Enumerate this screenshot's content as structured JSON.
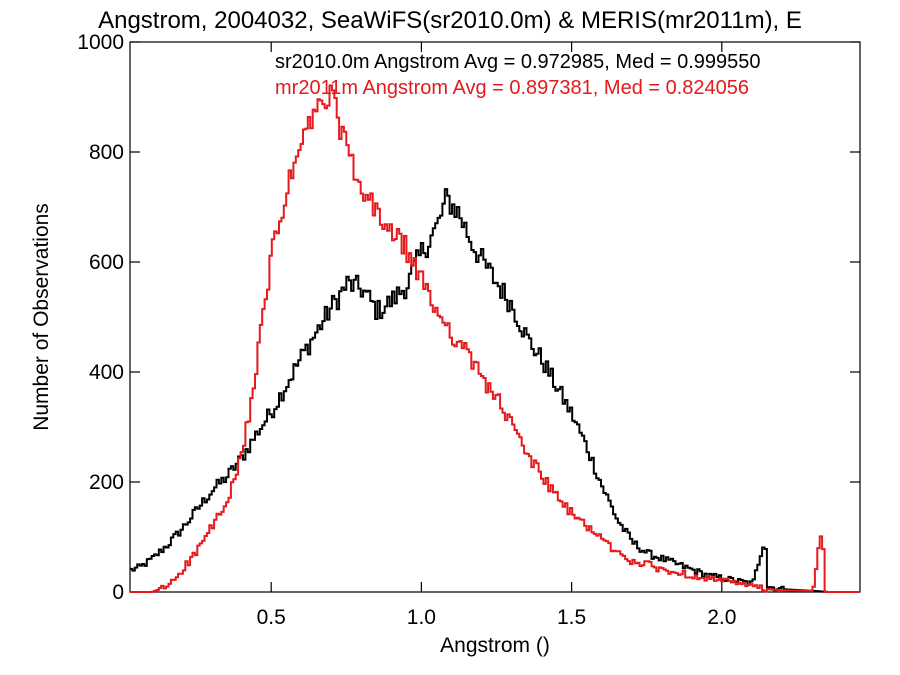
{
  "chart_data": {
    "type": "line",
    "title": "Angstrom, 2004032, SeaWiFS(sr2010.0m) & MERIS(mr2011m), E",
    "xlabel": "Angstrom ()",
    "ylabel": "Number of Observations",
    "xlim": [
      0.03,
      2.46
    ],
    "ylim": [
      0,
      1000
    ],
    "x_ticks": [
      0.5,
      1.0,
      1.5,
      2.0
    ],
    "x_tick_labels": [
      "0.5",
      "1.0",
      "1.5",
      "2.0"
    ],
    "y_ticks": [
      0,
      200,
      400,
      600,
      800,
      1000
    ],
    "y_tick_labels": [
      "0",
      "200",
      "400",
      "600",
      "800",
      "1000"
    ],
    "grid": false,
    "legend_position": "top-right",
    "style": "histogram-step",
    "series": [
      {
        "name": "sr2010.0m Angstrom Avg = 0.972985, Med = 0.999550",
        "color": "#000000",
        "points": [
          [
            0.03,
            40
          ],
          [
            0.06,
            45
          ],
          [
            0.1,
            60
          ],
          [
            0.15,
            85
          ],
          [
            0.2,
            115
          ],
          [
            0.25,
            150
          ],
          [
            0.3,
            185
          ],
          [
            0.35,
            210
          ],
          [
            0.4,
            245
          ],
          [
            0.45,
            290
          ],
          [
            0.5,
            330
          ],
          [
            0.55,
            380
          ],
          [
            0.6,
            430
          ],
          [
            0.65,
            475
          ],
          [
            0.7,
            520
          ],
          [
            0.75,
            560
          ],
          [
            0.8,
            550
          ],
          [
            0.85,
            510
          ],
          [
            0.9,
            530
          ],
          [
            0.95,
            560
          ],
          [
            1.0,
            620
          ],
          [
            1.05,
            665
          ],
          [
            1.08,
            715
          ],
          [
            1.12,
            690
          ],
          [
            1.16,
            640
          ],
          [
            1.2,
            600
          ],
          [
            1.25,
            560
          ],
          [
            1.3,
            520
          ],
          [
            1.35,
            460
          ],
          [
            1.4,
            420
          ],
          [
            1.45,
            370
          ],
          [
            1.5,
            320
          ],
          [
            1.55,
            260
          ],
          [
            1.6,
            190
          ],
          [
            1.65,
            130
          ],
          [
            1.7,
            90
          ],
          [
            1.75,
            70
          ],
          [
            1.8,
            60
          ],
          [
            1.85,
            50
          ],
          [
            1.9,
            40
          ],
          [
            1.95,
            30
          ],
          [
            2.0,
            25
          ],
          [
            2.05,
            20
          ],
          [
            2.1,
            15
          ],
          [
            2.14,
            100
          ],
          [
            2.15,
            10
          ],
          [
            2.2,
            5
          ],
          [
            2.3,
            2
          ],
          [
            2.35,
            0
          ],
          [
            2.46,
            0
          ]
        ]
      },
      {
        "name": "mr2011m Angstrom Avg = 0.897381, Med = 0.824056",
        "color": "#e41a1c",
        "points": [
          [
            0.03,
            0
          ],
          [
            0.1,
            0
          ],
          [
            0.15,
            10
          ],
          [
            0.2,
            40
          ],
          [
            0.25,
            75
          ],
          [
            0.3,
            120
          ],
          [
            0.35,
            160
          ],
          [
            0.4,
            250
          ],
          [
            0.45,
            420
          ],
          [
            0.5,
            620
          ],
          [
            0.55,
            730
          ],
          [
            0.6,
            820
          ],
          [
            0.65,
            880
          ],
          [
            0.7,
            900
          ],
          [
            0.75,
            800
          ],
          [
            0.8,
            720
          ],
          [
            0.85,
            690
          ],
          [
            0.9,
            650
          ],
          [
            0.95,
            620
          ],
          [
            1.0,
            560
          ],
          [
            1.05,
            510
          ],
          [
            1.1,
            470
          ],
          [
            1.15,
            430
          ],
          [
            1.2,
            390
          ],
          [
            1.25,
            350
          ],
          [
            1.3,
            300
          ],
          [
            1.35,
            250
          ],
          [
            1.4,
            210
          ],
          [
            1.45,
            170
          ],
          [
            1.5,
            140
          ],
          [
            1.55,
            120
          ],
          [
            1.6,
            95
          ],
          [
            1.65,
            70
          ],
          [
            1.7,
            55
          ],
          [
            1.75,
            50
          ],
          [
            1.8,
            40
          ],
          [
            1.85,
            35
          ],
          [
            1.9,
            30
          ],
          [
            1.95,
            25
          ],
          [
            2.0,
            20
          ],
          [
            2.05,
            15
          ],
          [
            2.1,
            10
          ],
          [
            2.15,
            5
          ],
          [
            2.2,
            3
          ],
          [
            2.3,
            2
          ],
          [
            2.33,
            120
          ],
          [
            2.34,
            0
          ],
          [
            2.46,
            0
          ]
        ]
      }
    ]
  }
}
